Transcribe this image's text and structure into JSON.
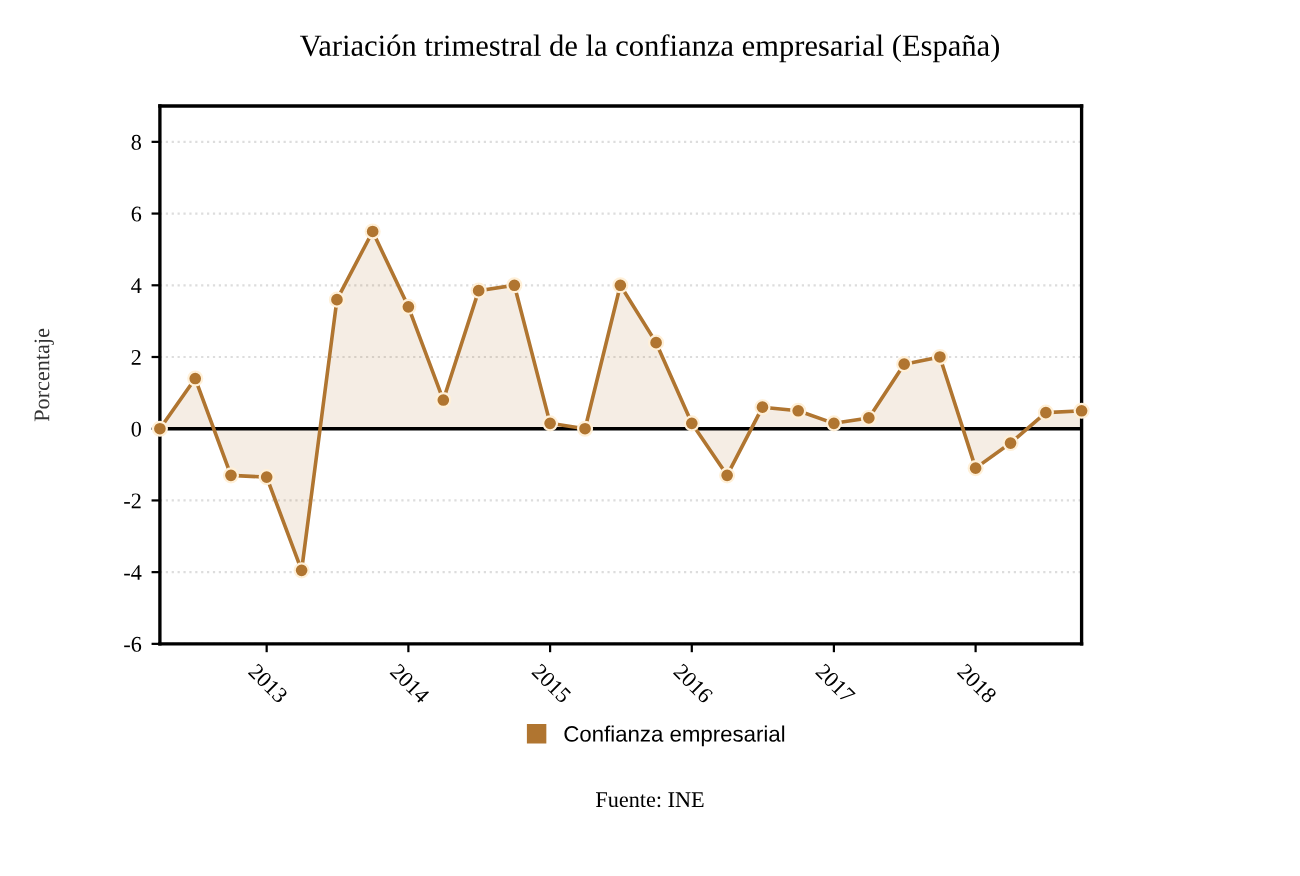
{
  "chart_data": {
    "type": "area",
    "title": "Variación trimestral de la confianza empresarial (España)",
    "ylabel": "Porcentaje",
    "annotations": [
      "Fuente: INE"
    ],
    "x": [
      "2012-04",
      "2012-07",
      "2012-10",
      "2013-01",
      "2013-04",
      "2013-07",
      "2013-10",
      "2014-01",
      "2014-04",
      "2014-07",
      "2014-10",
      "2015-01",
      "2015-04",
      "2015-07",
      "2015-10",
      "2016-01",
      "2016-04",
      "2016-07",
      "2016-10",
      "2017-01",
      "2017-04",
      "2017-07",
      "2017-10",
      "2018-01",
      "2018-04",
      "2018-07",
      "2018-10"
    ],
    "series": [
      {
        "name": "Confianza empresarial",
        "color": "#b07530",
        "values": [
          0,
          1.4,
          -1.3,
          -1.35,
          -3.95,
          3.6,
          5.5,
          3.4,
          0.8,
          3.85,
          4.0,
          0.15,
          0.0,
          4.0,
          2.4,
          0.15,
          -1.3,
          0.6,
          0.5,
          0.15,
          0.3,
          1.8,
          2.0,
          -1.1,
          -0.4,
          0.45,
          0.5
        ]
      }
    ],
    "xlim": [
      "2012-04",
      "2018-10"
    ],
    "xticks": [
      {
        "value": "2013-01",
        "label": "2013"
      },
      {
        "value": "2014-01",
        "label": "2014"
      },
      {
        "value": "2015-01",
        "label": "2015"
      },
      {
        "value": "2016-01",
        "label": "2016"
      },
      {
        "value": "2017-01",
        "label": "2017"
      },
      {
        "value": "2018-01",
        "label": "2018"
      }
    ],
    "ylim": [
      -6,
      9
    ],
    "yticks": [
      -6,
      -4,
      -2,
      0,
      2,
      4,
      6,
      8
    ],
    "ref_lines": [
      {
        "axis": "y",
        "value": 0,
        "color": "#000000"
      }
    ],
    "grid": "y",
    "legend": "bottom",
    "marker": "circle",
    "line_style": "solid"
  }
}
